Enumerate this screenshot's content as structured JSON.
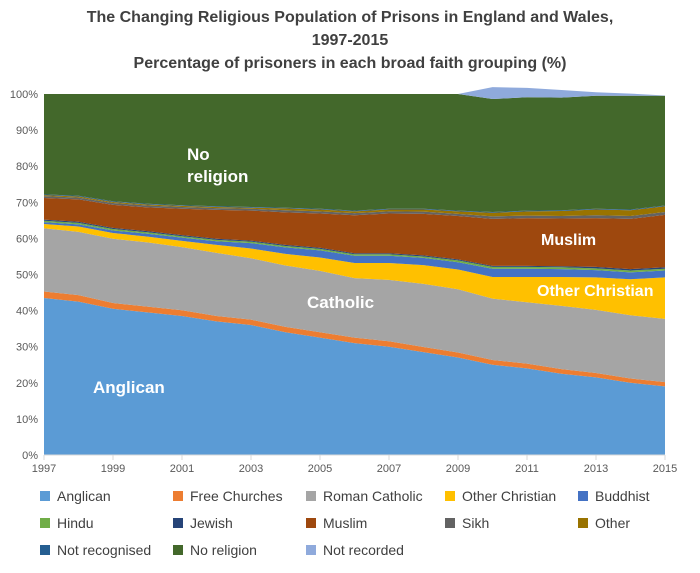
{
  "chart_data": {
    "type": "area",
    "stacked": true,
    "title_lines": [
      "The Changing Religious Population of Prisons in England and Wales,",
      "1997-2015",
      "Percentage of prisoners in each broad faith grouping (%)"
    ],
    "x": [
      1997,
      1998,
      1999,
      2000,
      2001,
      2002,
      2003,
      2004,
      2005,
      2006,
      2007,
      2008,
      2009,
      2010,
      2011,
      2012,
      2013,
      2014,
      2015
    ],
    "x_tick_labels": [
      "1997",
      "1999",
      "2001",
      "2003",
      "2005",
      "2007",
      "2009",
      "2011",
      "2013",
      "2015"
    ],
    "y_tick_labels": [
      "0%",
      "10%",
      "20%",
      "30%",
      "40%",
      "50%",
      "60%",
      "70%",
      "80%",
      "90%",
      "100%"
    ],
    "ylim": [
      0,
      100
    ],
    "series": [
      {
        "name": "Anglican",
        "color": "#5b9bd5",
        "values": [
          43.5,
          42.5,
          40.5,
          39.5,
          38.5,
          37,
          36,
          34,
          32.5,
          31,
          30,
          28.5,
          27,
          25,
          24,
          22.5,
          21.5,
          20,
          19
        ]
      },
      {
        "name": "Free Churches",
        "color": "#ed7d31",
        "values": [
          1.8,
          1.8,
          1.6,
          1.6,
          1.6,
          1.5,
          1.5,
          1.5,
          1.5,
          1.5,
          1.5,
          1.4,
          1.4,
          1.3,
          1.3,
          1.3,
          1.2,
          1.2,
          1.2
        ]
      },
      {
        "name": "Roman Catholic",
        "color": "#a5a5a5",
        "values": [
          17.5,
          17.5,
          17.8,
          17.8,
          17.5,
          17.5,
          17,
          17,
          17,
          16.5,
          17,
          17.5,
          17.5,
          17,
          17,
          17.5,
          17.5,
          17.5,
          17.5
        ]
      },
      {
        "name": "Other Christian",
        "color": "#ffc000",
        "values": [
          1.2,
          1.5,
          1.6,
          1.6,
          1.7,
          2.2,
          2.7,
          3.2,
          3.7,
          4.2,
          4.7,
          5.2,
          5.5,
          6,
          7,
          8,
          9,
          10,
          11.5
        ]
      },
      {
        "name": "Buddhist",
        "color": "#4472c4",
        "values": [
          0.5,
          0.6,
          0.7,
          0.8,
          0.9,
          1.0,
          1.5,
          1.8,
          2,
          2,
          2,
          2,
          2,
          2.3,
          2.3,
          2.2,
          2.0,
          1.9,
          1.9
        ]
      },
      {
        "name": "Hindu",
        "color": "#70ad47",
        "values": [
          0.4,
          0.4,
          0.4,
          0.4,
          0.4,
          0.4,
          0.4,
          0.4,
          0.4,
          0.4,
          0.4,
          0.4,
          0.5,
          0.5,
          0.5,
          0.5,
          0.5,
          0.5,
          0.5
        ]
      },
      {
        "name": "Jewish",
        "color": "#264478",
        "values": [
          0.3,
          0.3,
          0.3,
          0.3,
          0.3,
          0.3,
          0.3,
          0.3,
          0.3,
          0.3,
          0.3,
          0.3,
          0.3,
          0.3,
          0.3,
          0.3,
          0.4,
          0.4,
          0.4
        ]
      },
      {
        "name": "Muslim",
        "color": "#9e480e",
        "values": [
          6,
          6.2,
          6.4,
          6.6,
          7.3,
          8,
          8.3,
          9,
          9.5,
          10.5,
          11,
          11.5,
          12,
          13,
          13.2,
          13.2,
          13.5,
          13.9,
          14.5
        ]
      },
      {
        "name": "Sikh",
        "color": "#636363",
        "values": [
          0.5,
          0.5,
          0.5,
          0.5,
          0.5,
          0.5,
          0.5,
          0.6,
          0.6,
          0.6,
          0.6,
          0.6,
          0.6,
          0.7,
          0.7,
          0.7,
          0.8,
          0.8,
          0.8
        ]
      },
      {
        "name": "Other",
        "color": "#997300",
        "values": [
          0.3,
          0.3,
          0.3,
          0.3,
          0.3,
          0.3,
          0.3,
          0.5,
          0.5,
          0.5,
          0.5,
          0.6,
          0.7,
          1.0,
          1.2,
          1.4,
          1.6,
          1.6,
          1.6
        ]
      },
      {
        "name": "Not recognised",
        "color": "#255e91",
        "values": [
          0.2,
          0.2,
          0.2,
          0.2,
          0.2,
          0.2,
          0.2,
          0.2,
          0.2,
          0.2,
          0.2,
          0.2,
          0.2,
          0.2,
          0.2,
          0.2,
          0.2,
          0.2,
          0.2
        ]
      },
      {
        "name": "No religion",
        "color": "#43682b",
        "values": [
          27.8,
          28.2,
          29.7,
          30.4,
          30.8,
          31.1,
          31.3,
          31.5,
          31.8,
          32.3,
          31.8,
          31.8,
          32.3,
          31.3,
          31.4,
          31.2,
          31.3,
          31.5,
          30.4
        ]
      },
      {
        "name": "Not recorded",
        "color": "#8faadc",
        "values": [
          0,
          0,
          0,
          0,
          0,
          0,
          0,
          0,
          0,
          0,
          0,
          0,
          0,
          3.3,
          2.6,
          2.1,
          1.0,
          0.6,
          0.1
        ]
      }
    ],
    "inline_labels": [
      {
        "text": "No religion"
      },
      {
        "text": "Muslim"
      },
      {
        "text": "Other Christian"
      },
      {
        "text": "Catholic"
      },
      {
        "text": "Anglican"
      }
    ],
    "legend_position": "bottom",
    "grid": false
  }
}
